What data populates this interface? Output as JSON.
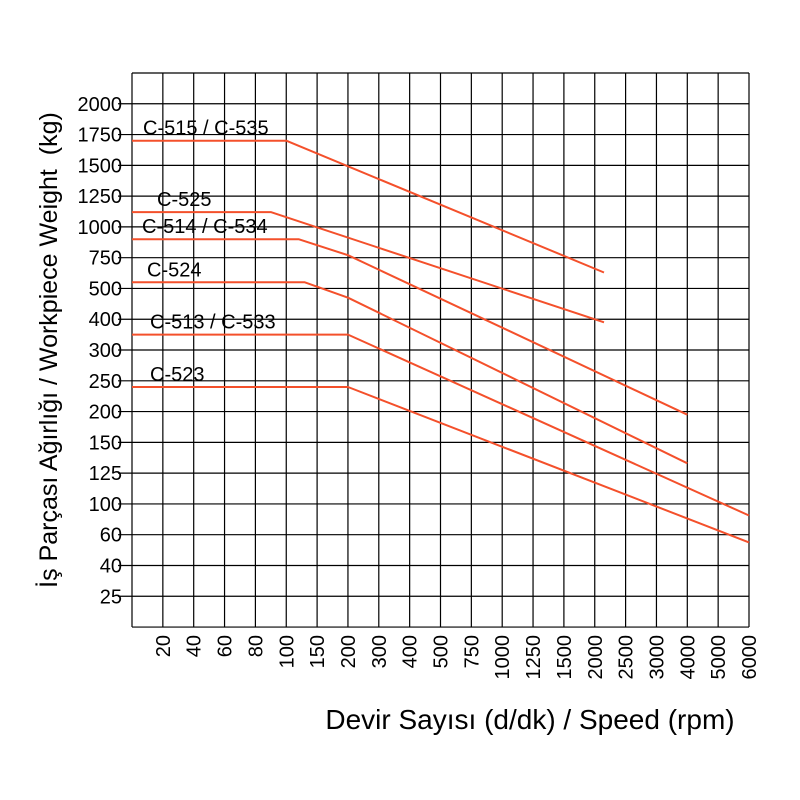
{
  "chart_data": {
    "type": "line",
    "title": "",
    "xlabel": "Devir Sayısı (d/dk) / Speed (rpm)",
    "ylabel": "İş Parçası Ağırlığı / Workpiece Weight  (kg)",
    "x_ticks": [
      20,
      40,
      60,
      80,
      100,
      150,
      200,
      300,
      400,
      500,
      750,
      1000,
      1250,
      1500,
      2000,
      2500,
      3000,
      4000,
      5000,
      6000
    ],
    "y_ticks": [
      2000,
      1750,
      1500,
      1250,
      1000,
      750,
      500,
      400,
      300,
      250,
      200,
      150,
      125,
      100,
      60,
      40,
      25
    ],
    "x_axis_unit": "rpm",
    "y_axis_unit": "kg",
    "grid": true,
    "legend_position": "inline-labels",
    "line_color": "#f4502b",
    "grid_color": "#000000",
    "series": [
      {
        "label": "C-515 / C-535",
        "label_indent": 11,
        "points": [
          [
            "axis",
            1700
          ],
          [
            100,
            1700
          ],
          [
            2150,
            630
          ]
        ]
      },
      {
        "label": "C-525",
        "label_indent": 25,
        "points": [
          [
            "axis",
            1120
          ],
          [
            90,
            1120
          ],
          [
            2150,
            390
          ]
        ]
      },
      {
        "label": "C-514 / C-534",
        "label_indent": 10,
        "points": [
          [
            "axis",
            900
          ],
          [
            120,
            900
          ],
          [
            200,
            770
          ],
          [
            4000,
            195
          ]
        ]
      },
      {
        "label": "C-524",
        "label_indent": 15,
        "points": [
          [
            "axis",
            550
          ],
          [
            130,
            550
          ],
          [
            200,
            470
          ],
          [
            4000,
            133
          ]
        ]
      },
      {
        "label": "C-513 / C-533",
        "label_indent": 18,
        "points": [
          [
            "axis",
            350
          ],
          [
            200,
            350
          ],
          [
            6000,
            85
          ]
        ]
      },
      {
        "label": "C-523",
        "label_indent": 18,
        "points": [
          [
            "axis",
            240
          ],
          [
            200,
            240
          ],
          [
            6000,
            55
          ]
        ]
      }
    ]
  }
}
